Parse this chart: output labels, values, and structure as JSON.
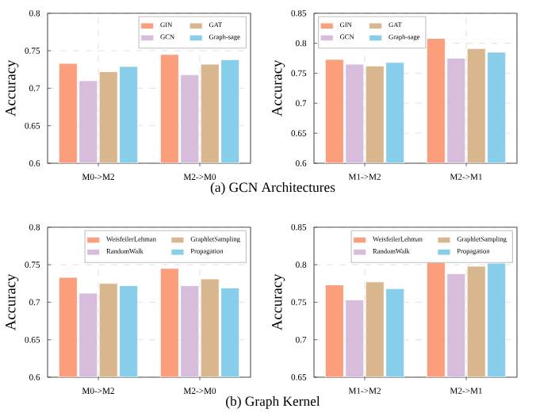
{
  "chart_data": [
    {
      "type": "bar",
      "categories": [
        "M0->M2",
        "M2->M0"
      ],
      "ylabel": "Accuracy",
      "ylim": [
        0.6,
        0.8
      ],
      "yticks": [
        0.6,
        0.65,
        0.7,
        0.75,
        0.8
      ],
      "grid": true,
      "legend": "top right",
      "annotations": [
        "(a)  GCN Architectures"
      ],
      "series": [
        {
          "name": "GIN",
          "color": "#fa9e7c",
          "values": [
            0.733,
            0.745
          ]
        },
        {
          "name": "GCN",
          "color": "#d8bcdc",
          "values": [
            0.71,
            0.718
          ]
        },
        {
          "name": "GAT",
          "color": "#d8b68e",
          "values": [
            0.722,
            0.732
          ]
        },
        {
          "name": "Graph-sage",
          "color": "#88cde9",
          "values": [
            0.729,
            0.738
          ]
        }
      ]
    },
    {
      "type": "bar",
      "categories": [
        "M1->M2",
        "M2->M1"
      ],
      "ylabel": "Accuracy",
      "ylim": [
        0.6,
        0.85
      ],
      "yticks": [
        0.6,
        0.65,
        0.7,
        0.75,
        0.8,
        0.85
      ],
      "grid": true,
      "legend": "top left",
      "series": [
        {
          "name": "GIN",
          "color": "#fa9e7c",
          "values": [
            0.773,
            0.808
          ]
        },
        {
          "name": "GCN",
          "color": "#d8bcdc",
          "values": [
            0.765,
            0.775
          ]
        },
        {
          "name": "GAT",
          "color": "#d8b68e",
          "values": [
            0.762,
            0.791
          ]
        },
        {
          "name": "Graph-sage",
          "color": "#88cde9",
          "values": [
            0.768,
            0.785
          ]
        }
      ]
    },
    {
      "type": "bar",
      "categories": [
        "M0->M2",
        "M2->M0"
      ],
      "ylabel": "Accuracy",
      "ylim": [
        0.6,
        0.8
      ],
      "yticks": [
        0.6,
        0.65,
        0.7,
        0.75,
        0.8
      ],
      "grid": true,
      "legend": "top right",
      "annotations": [
        "(b)  Graph Kernel"
      ],
      "series": [
        {
          "name": "WeisfeilerLehman",
          "color": "#fa9e7c",
          "values": [
            0.733,
            0.745
          ]
        },
        {
          "name": "RandomWalk",
          "color": "#d8bcdc",
          "values": [
            0.712,
            0.722
          ]
        },
        {
          "name": "GraphletSampling",
          "color": "#d8b68e",
          "values": [
            0.725,
            0.731
          ]
        },
        {
          "name": "Propagation",
          "color": "#88cde9",
          "values": [
            0.722,
            0.719
          ]
        }
      ]
    },
    {
      "type": "bar",
      "categories": [
        "M1->M2",
        "M2->M1"
      ],
      "ylabel": "Accuracy",
      "ylim": [
        0.65,
        0.85
      ],
      "yticks": [
        0.65,
        0.7,
        0.75,
        0.8,
        0.85
      ],
      "grid": true,
      "legend": "top right",
      "series": [
        {
          "name": "WeisfeilerLehman",
          "color": "#fa9e7c",
          "values": [
            0.773,
            0.808
          ]
        },
        {
          "name": "RandomWalk",
          "color": "#d8bcdc",
          "values": [
            0.753,
            0.788
          ]
        },
        {
          "name": "GraphletSampling",
          "color": "#d8b68e",
          "values": [
            0.777,
            0.798
          ]
        },
        {
          "name": "Propagation",
          "color": "#88cde9",
          "values": [
            0.768,
            0.802
          ]
        }
      ]
    }
  ]
}
